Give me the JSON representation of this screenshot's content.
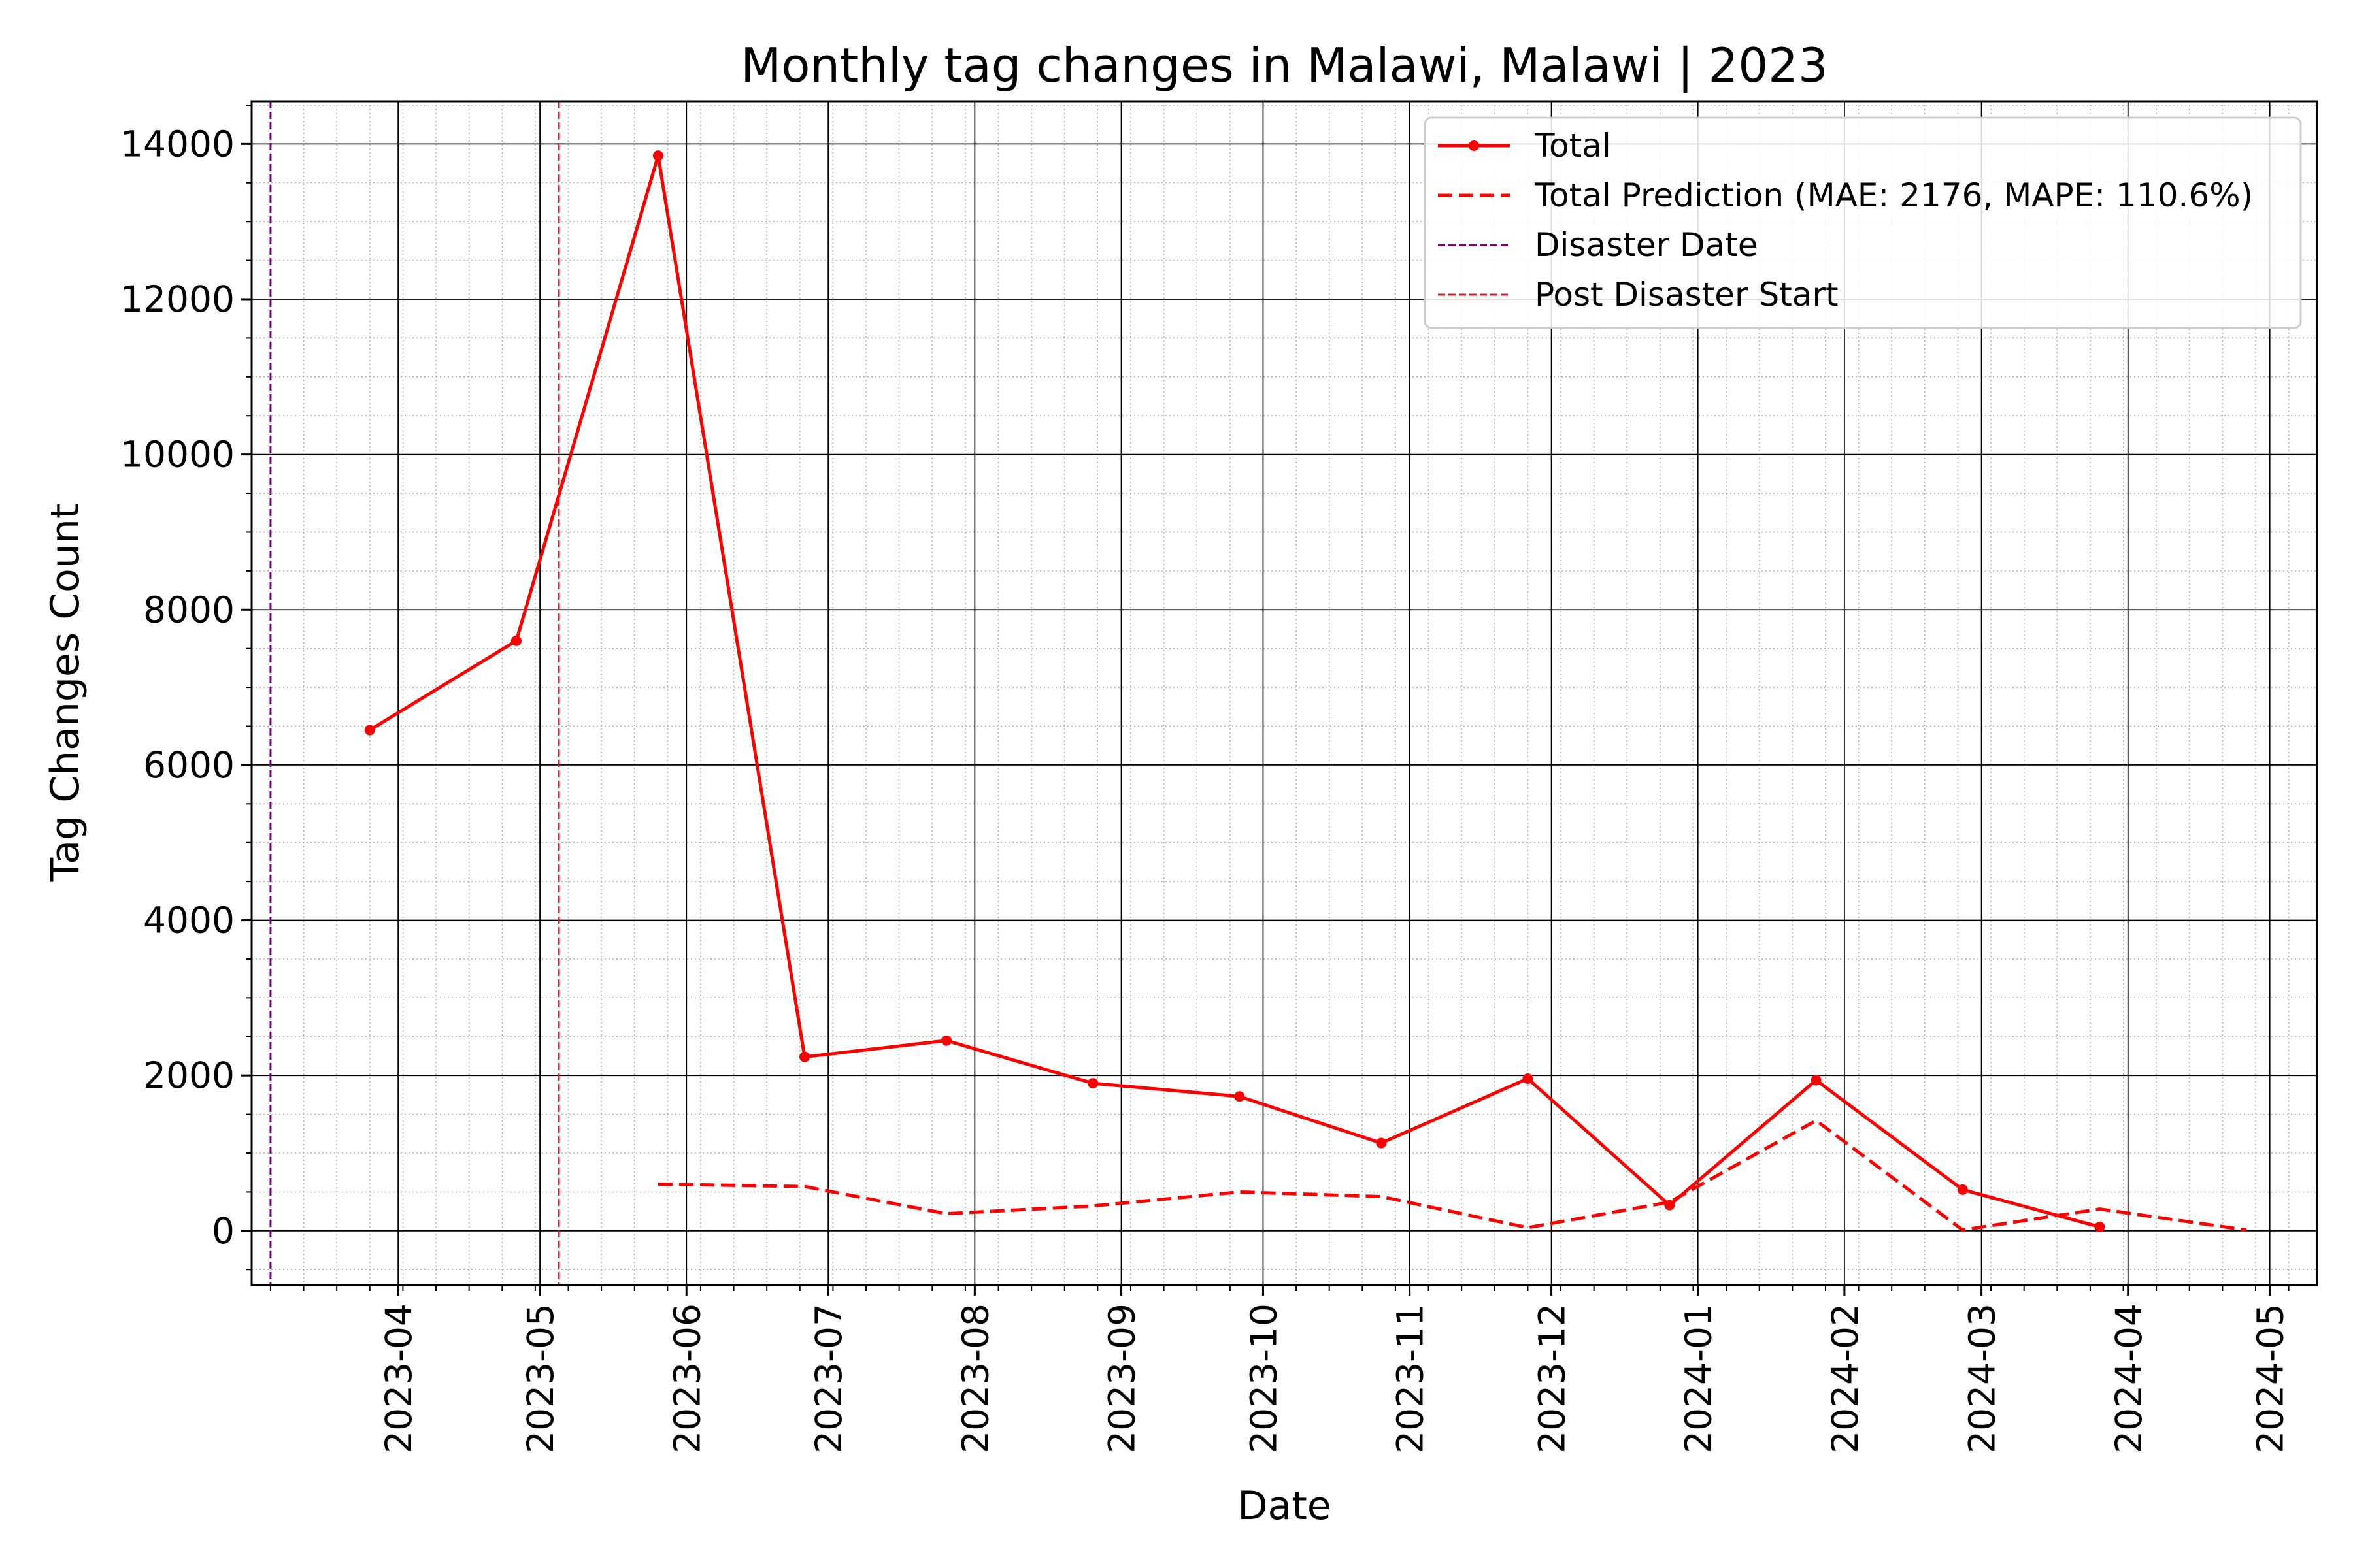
{
  "chart_data": {
    "type": "line",
    "title": "Monthly tag changes in Malawi, Malawi | 2023",
    "xlabel": "Date",
    "ylabel": "Tag Changes Count",
    "xlim": [
      "2023-03-01",
      "2024-05-11"
    ],
    "ylim": [
      -700,
      14550
    ],
    "grid": "major solid, minor dotted",
    "legend_position": "top-right",
    "x_ticks": [
      "2023-04",
      "2023-05",
      "2023-06",
      "2023-07",
      "2023-08",
      "2023-09",
      "2023-10",
      "2023-11",
      "2023-12",
      "2024-01",
      "2024-02",
      "2024-03",
      "2024-04",
      "2024-05"
    ],
    "y_ticks": [
      0,
      2000,
      4000,
      6000,
      8000,
      10000,
      12000,
      14000
    ],
    "series": [
      {
        "name": "Total",
        "style": "solid-marker",
        "color": "#ff0000",
        "points": [
          {
            "x": "2023-03-26",
            "y": 6450
          },
          {
            "x": "2023-04-26",
            "y": 7600
          },
          {
            "x": "2023-05-26",
            "y": 13850
          },
          {
            "x": "2023-06-26",
            "y": 2240
          },
          {
            "x": "2023-07-26",
            "y": 2450
          },
          {
            "x": "2023-08-26",
            "y": 1900
          },
          {
            "x": "2023-09-26",
            "y": 1730
          },
          {
            "x": "2023-10-26",
            "y": 1130
          },
          {
            "x": "2023-11-26",
            "y": 1960
          },
          {
            "x": "2023-12-26",
            "y": 330
          },
          {
            "x": "2024-01-26",
            "y": 1940
          },
          {
            "x": "2024-02-26",
            "y": 530
          },
          {
            "x": "2024-03-26",
            "y": 50
          }
        ]
      },
      {
        "name": "Total Prediction (MAE: 2176, MAPE: 110.6%)",
        "style": "dashed",
        "color": "#ff0000",
        "points": [
          {
            "x": "2023-05-26",
            "y": 600
          },
          {
            "x": "2023-06-26",
            "y": 570
          },
          {
            "x": "2023-07-26",
            "y": 220
          },
          {
            "x": "2023-08-26",
            "y": 320
          },
          {
            "x": "2023-09-26",
            "y": 500
          },
          {
            "x": "2023-10-26",
            "y": 440
          },
          {
            "x": "2023-11-26",
            "y": 40
          },
          {
            "x": "2023-12-26",
            "y": 370
          },
          {
            "x": "2024-01-26",
            "y": 1420
          },
          {
            "x": "2024-02-26",
            "y": 10
          },
          {
            "x": "2024-03-26",
            "y": 280
          },
          {
            "x": "2024-04-26",
            "y": 10
          }
        ]
      }
    ],
    "vlines": [
      {
        "name": "Disaster Date",
        "x": "2023-03-05",
        "color": "#800080"
      },
      {
        "name": "Post Disaster Start",
        "x": "2023-05-05",
        "color": "#c0282d"
      }
    ]
  }
}
